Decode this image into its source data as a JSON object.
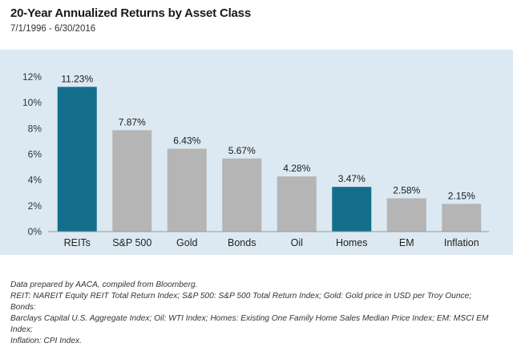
{
  "header": {
    "title": "20-Year Annualized Returns by Asset Class",
    "subtitle": "7/1/1996 - 6/30/2016"
  },
  "chart_data": {
    "type": "bar",
    "categories": [
      "REITs",
      "S&P 500",
      "Gold",
      "Bonds",
      "Oil",
      "Homes",
      "EM",
      "Inflation"
    ],
    "values": [
      11.23,
      7.87,
      6.43,
      5.67,
      4.28,
      3.47,
      2.58,
      2.15
    ],
    "value_labels": [
      "11.23%",
      "7.87%",
      "6.43%",
      "5.67%",
      "4.28%",
      "3.47%",
      "2.58%",
      "2.15%"
    ],
    "highlighted": [
      true,
      false,
      false,
      false,
      false,
      true,
      false,
      false
    ],
    "y_ticks": [
      0,
      2,
      4,
      6,
      8,
      10,
      12
    ],
    "y_tick_labels": [
      "0%",
      "2%",
      "4%",
      "6%",
      "8%",
      "10%",
      "12%"
    ],
    "ylim": [
      0,
      12
    ],
    "title": "20-Year Annualized Returns by Asset Class",
    "xlabel": "",
    "ylabel": "",
    "grid": false,
    "colors": {
      "highlight": "#136f8c",
      "default": "#b5b5b5",
      "background": "#dce9f2"
    }
  },
  "notes": {
    "source": "Data prepared by AACA, compiled from Bloomberg.",
    "definitions": [
      "REIT: NAREIT Equity REIT Total Return Index; S&P 500: S&P 500 Total Return Index; Gold: Gold price in USD per Troy Ounce; Bonds:",
      "Barclays Capital U.S. Aggregate Index; Oil: WTI Index; Homes: Existing One Family Home Sales Median Price Index; EM: MSCI EM Index;",
      "Inflation: CPI Index."
    ]
  }
}
